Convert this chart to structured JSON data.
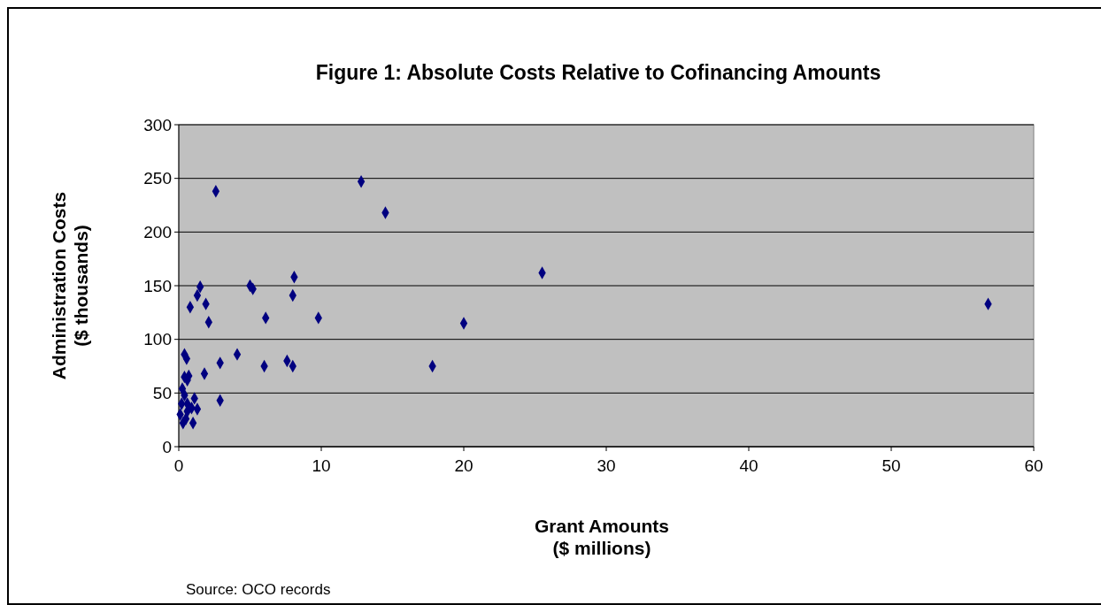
{
  "chart_data": {
    "type": "scatter",
    "title": "Figure 1: Absolute Costs Relative to Cofinancing Amounts",
    "xlabel": "Grant Amounts\n($ millions)",
    "ylabel": "Administration Costs\n($ thousands)",
    "annotations": [
      "Source: OCO records"
    ],
    "x": [
      1.5,
      1.3,
      1.9,
      0.8,
      2.1,
      5.0,
      5.2,
      8.1,
      8.0,
      6.1,
      9.8,
      0.4,
      0.55,
      4.1,
      2.9,
      6.0,
      7.6,
      8.0,
      1.8,
      0.4,
      0.7,
      0.6,
      0.25,
      1.1,
      2.9,
      0.4,
      0.2,
      0.6,
      1.3,
      0.1,
      0.5,
      1.0,
      0.3,
      0.6,
      0.9,
      2.6,
      12.8,
      14.5,
      25.5,
      20.0,
      17.8,
      56.8
    ],
    "values": [
      149,
      141,
      133,
      130,
      116,
      150,
      147,
      158,
      141,
      120,
      120,
      86,
      82,
      86,
      78,
      75,
      80,
      75,
      68,
      65,
      66,
      62,
      54,
      45,
      43,
      48,
      40,
      40,
      35,
      30,
      26,
      22,
      22,
      33,
      36,
      238,
      247,
      218,
      162,
      115,
      75,
      133
    ],
    "color": "#000080",
    "marker": "diamond",
    "xlim": [
      0,
      60
    ],
    "xticks": [
      0,
      10,
      20,
      30,
      40,
      50,
      60
    ],
    "ylim": [
      0,
      300
    ],
    "yticks": [
      0,
      50,
      100,
      150,
      200,
      250,
      300
    ],
    "grid": "y"
  }
}
